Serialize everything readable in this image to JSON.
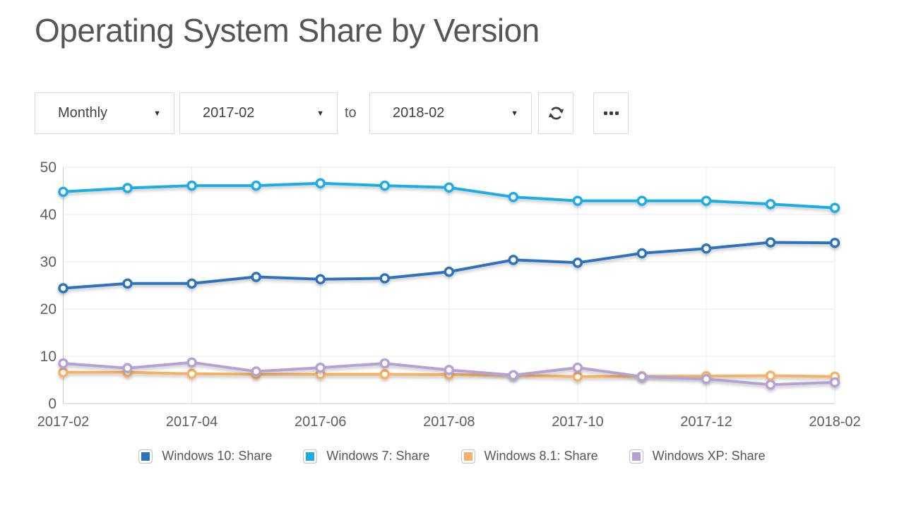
{
  "title": "Operating System Share by Version",
  "controls": {
    "interval": "Monthly",
    "date_from": "2017-02",
    "to_label": "to",
    "date_to": "2018-02",
    "refresh_icon": "refresh",
    "more_icon": "ellipsis"
  },
  "chart_data": {
    "type": "line",
    "title": "Operating System Share by Version",
    "x": [
      "2017-02",
      "2017-03",
      "2017-04",
      "2017-05",
      "2017-06",
      "2017-07",
      "2017-08",
      "2017-09",
      "2017-10",
      "2017-11",
      "2017-12",
      "2018-01",
      "2018-02"
    ],
    "x_tick_labels": [
      "2017-02",
      "2017-04",
      "2017-06",
      "2017-08",
      "2017-10",
      "2017-12",
      "2018-02"
    ],
    "ylim": [
      0,
      50
    ],
    "yticks": [
      0,
      10,
      20,
      30,
      40,
      50
    ],
    "grid": true,
    "legend_position": "bottom",
    "series": [
      {
        "name": "Windows 10: Share",
        "color": "#2E73B9",
        "values": [
          24.4,
          25.4,
          25.4,
          26.8,
          26.3,
          26.5,
          27.9,
          30.4,
          29.8,
          31.8,
          32.8,
          34.1,
          34.0
        ]
      },
      {
        "name": "Windows 7: Share",
        "color": "#1CADE4",
        "values": [
          44.8,
          45.6,
          46.1,
          46.1,
          46.6,
          46.1,
          45.7,
          43.7,
          42.9,
          42.9,
          42.9,
          42.2,
          41.4
        ]
      },
      {
        "name": "Windows 8.1: Share",
        "color": "#F5B266",
        "values": [
          6.6,
          6.6,
          6.3,
          6.2,
          6.2,
          6.2,
          6.1,
          6.0,
          5.7,
          5.8,
          5.8,
          5.9,
          5.7
        ]
      },
      {
        "name": "Windows XP: Share",
        "color": "#B3A2D3",
        "values": [
          8.5,
          7.5,
          8.7,
          6.8,
          7.6,
          8.5,
          7.1,
          6.0,
          7.6,
          5.7,
          5.2,
          4.0,
          4.5
        ]
      }
    ]
  },
  "style": {
    "grid_color": "#e9e9e9",
    "axis_color": "#cbcbcb",
    "tick_label_color": "#5d5e61"
  }
}
